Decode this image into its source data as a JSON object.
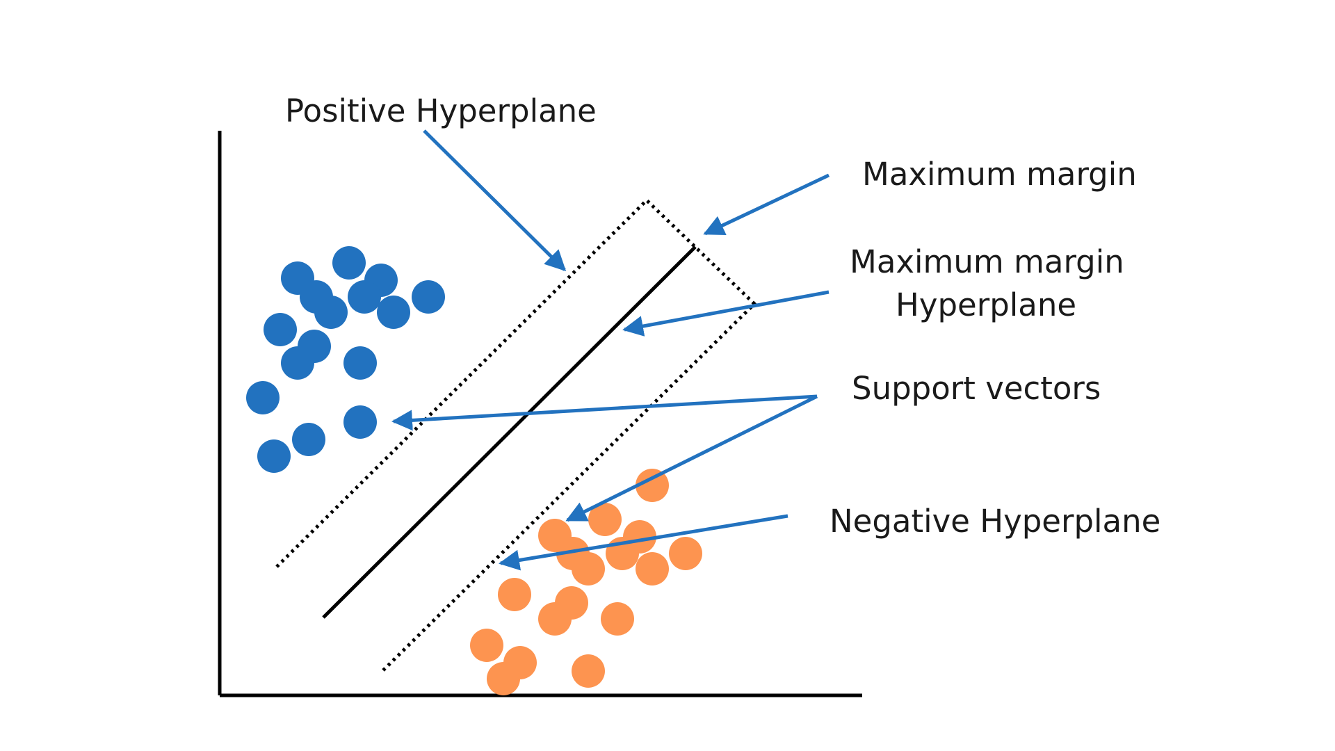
{
  "labels": {
    "positive_hyperplane": "Positive Hyperplane",
    "maximum_margin": "Maximum margin",
    "mm_hyperplane_line1": "Maximum margin",
    "mm_hyperplane_line2": "Hyperplane",
    "support_vectors": "Support vectors",
    "negative_hyperplane": "Negative Hyperplane"
  },
  "colors": {
    "positive_class": "#2272bf",
    "negative_class": "#fd9450",
    "arrow": "#2272bf",
    "axis": "#000000",
    "hyperplane": "#000000"
  }
}
